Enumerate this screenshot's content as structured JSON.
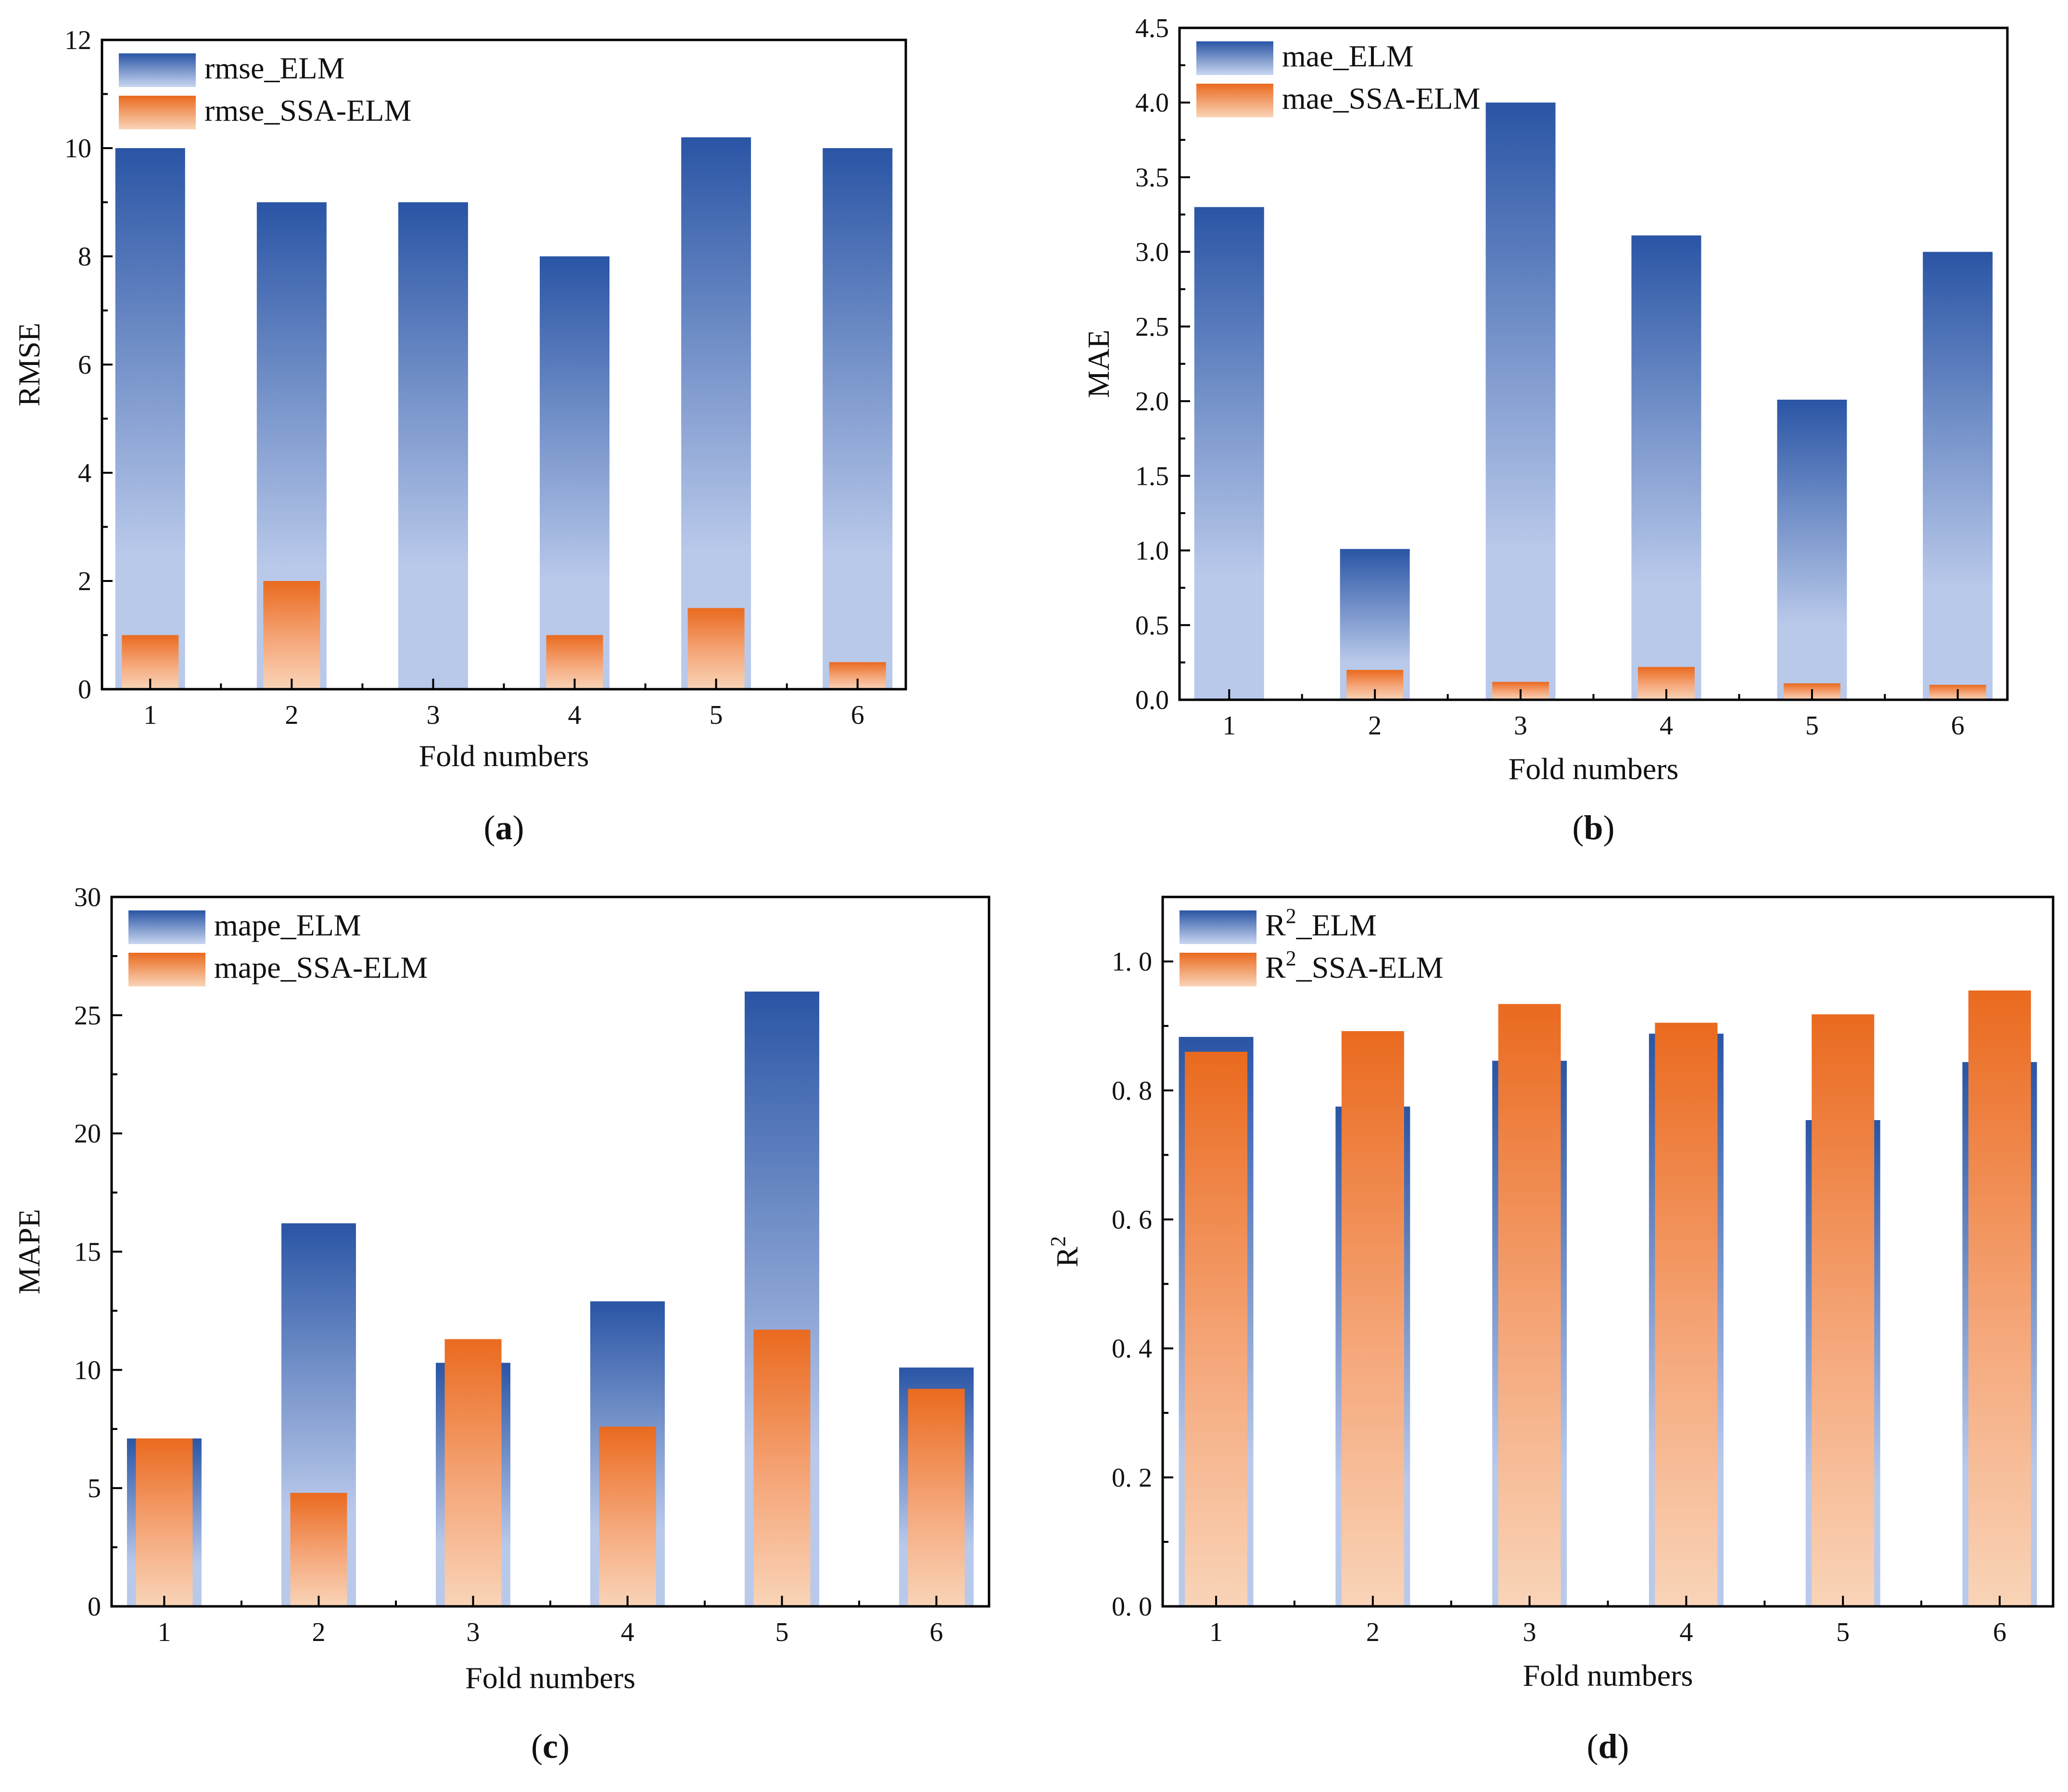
{
  "figure": {
    "colors": {
      "elm_dark": "#2a55a5",
      "elm_light": "#b9c9ea",
      "ssa_dark": "#ea6a1f",
      "ssa_light": "#f9d4b8"
    }
  },
  "chart_data": [
    {
      "type": "bar",
      "panel_label": "(a)",
      "panel_letter": "a",
      "categories": [
        "1",
        "2",
        "3",
        "4",
        "5",
        "6"
      ],
      "series": [
        {
          "name": "rmse_ELM",
          "values": [
            10.0,
            9.0,
            9.0,
            8.0,
            10.2,
            10.0
          ]
        },
        {
          "name": "rmse_SSA-ELM",
          "values": [
            1.0,
            2.0,
            0.0,
            1.0,
            1.5,
            0.5
          ]
        }
      ],
      "xlabel": "Fold numbers",
      "ylabel": "RMSE",
      "ylim": [
        0,
        12
      ],
      "yticks": [
        "0",
        "2",
        "4",
        "6",
        "8",
        "10",
        "12"
      ],
      "legend_position": "top-left"
    },
    {
      "type": "bar",
      "panel_label": "(b)",
      "panel_letter": "b",
      "categories": [
        "1",
        "2",
        "3",
        "4",
        "5",
        "6"
      ],
      "series": [
        {
          "name": "mae_ELM",
          "values": [
            3.3,
            1.01,
            4.0,
            3.11,
            2.01,
            3.0
          ]
        },
        {
          "name": "mae_SSA-ELM",
          "values": [
            0.0,
            0.2,
            0.12,
            0.22,
            0.11,
            0.1
          ]
        }
      ],
      "xlabel": "Fold numbers",
      "ylabel": "MAE",
      "ylim": [
        0,
        4.5
      ],
      "yticks": [
        "0.0",
        "0.5",
        "1.0",
        "1.5",
        "2.0",
        "2.5",
        "3.0",
        "3.5",
        "4.0",
        "4.5"
      ],
      "legend_position": "top-left"
    },
    {
      "type": "bar",
      "panel_label": "(c)",
      "panel_letter": "c",
      "categories": [
        "1",
        "2",
        "3",
        "4",
        "5",
        "6"
      ],
      "series": [
        {
          "name": "mape_ELM",
          "values": [
            7.1,
            16.2,
            10.3,
            12.9,
            26.0,
            10.1
          ]
        },
        {
          "name": "mape_SSA-ELM",
          "values": [
            7.1,
            4.8,
            11.3,
            7.6,
            11.7,
            9.2
          ]
        }
      ],
      "xlabel": "Fold numbers",
      "ylabel": "MAPE",
      "ylim": [
        0,
        30
      ],
      "yticks": [
        "0",
        "5",
        "10",
        "15",
        "20",
        "25",
        "30"
      ],
      "legend_position": "top-left"
    },
    {
      "type": "bar",
      "panel_label": "(d)",
      "panel_letter": "d",
      "categories": [
        "1",
        "2",
        "3",
        "4",
        "5",
        "6"
      ],
      "series": [
        {
          "name": "R",
          "sup": "2",
          "suffix": "_ELM",
          "values": [
            0.883,
            0.775,
            0.846,
            0.888,
            0.754,
            0.844
          ]
        },
        {
          "name": "R",
          "sup": "2",
          "suffix": "_SSA-ELM",
          "values": [
            0.86,
            0.892,
            0.934,
            0.905,
            0.918,
            0.955
          ]
        }
      ],
      "xlabel": "Fold numbers",
      "ylabel": "R",
      "ylabel_sup": "2",
      "ylim": [
        0,
        1.1
      ],
      "yticks": [
        "0. 0",
        "0. 2",
        "0. 4",
        "0. 6",
        "0. 8",
        "1. 0"
      ],
      "legend_position": "top-left"
    }
  ]
}
